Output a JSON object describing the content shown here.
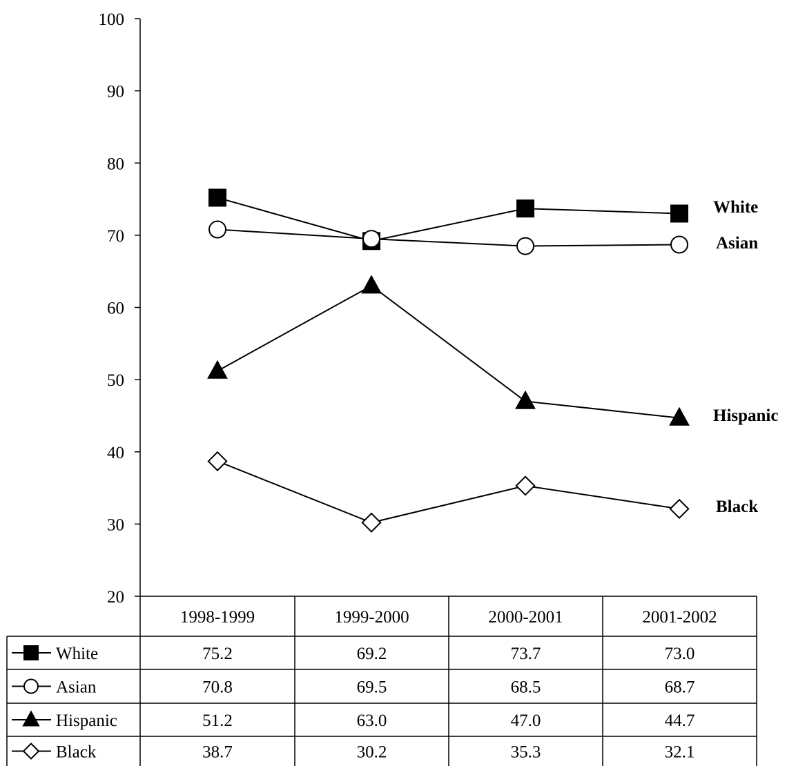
{
  "chart_data": {
    "type": "line",
    "categories": [
      "1998-1999",
      "1999-2000",
      "2000-2001",
      "2001-2002"
    ],
    "ylim": [
      20,
      100
    ],
    "yticks": [
      20,
      30,
      40,
      50,
      60,
      70,
      80,
      90,
      100
    ],
    "grid": false,
    "legend": "data table below the plot",
    "series": [
      {
        "name": "White",
        "marker": "square-filled",
        "values": [
          75.2,
          69.2,
          73.7,
          73.0
        ],
        "labels": [
          "75.2",
          "69.2",
          "73.7",
          "73.0"
        ]
      },
      {
        "name": "Asian",
        "marker": "circle-open",
        "values": [
          70.8,
          69.5,
          68.5,
          68.7
        ],
        "labels": [
          "70.8",
          "69.5",
          "68.5",
          "68.7"
        ]
      },
      {
        "name": "Hispanic",
        "marker": "triangle-filled",
        "values": [
          51.2,
          63.0,
          47.0,
          44.7
        ],
        "labels": [
          "51.2",
          "63.0",
          "47.0",
          "44.7"
        ]
      },
      {
        "name": "Black",
        "marker": "diamond-open",
        "values": [
          38.7,
          30.2,
          35.3,
          32.1
        ],
        "labels": [
          "38.7",
          "30.2",
          "35.3",
          "32.1"
        ]
      }
    ],
    "end_labels": [
      "White",
      "Asian",
      "Hispanic",
      "Black"
    ]
  },
  "colors": {
    "line": "#000000",
    "background": "#ffffff"
  }
}
